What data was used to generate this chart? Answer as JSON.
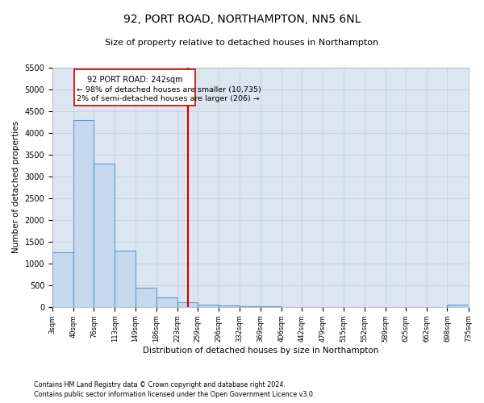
{
  "title": "92, PORT ROAD, NORTHAMPTON, NN5 6NL",
  "subtitle": "Size of property relative to detached houses in Northampton",
  "xlabel": "Distribution of detached houses by size in Northampton",
  "ylabel": "Number of detached properties",
  "footnote1": "Contains HM Land Registry data © Crown copyright and database right 2024.",
  "footnote2": "Contains public sector information licensed under the Open Government Licence v3.0.",
  "annotation_title": "92 PORT ROAD: 242sqm",
  "annotation_line1": "← 98% of detached houses are smaller (10,735)",
  "annotation_line2": "2% of semi-detached houses are larger (206) →",
  "property_line_x": 242,
  "bar_edges": [
    3,
    40,
    76,
    113,
    149,
    186,
    223,
    259,
    296,
    332,
    369,
    406,
    442,
    479,
    515,
    552,
    589,
    625,
    662,
    698,
    735
  ],
  "bar_heights": [
    1250,
    4300,
    3300,
    1300,
    450,
    220,
    100,
    50,
    30,
    20,
    10,
    5,
    5,
    5,
    0,
    0,
    0,
    0,
    0,
    50
  ],
  "bar_color": "#c5d8ed",
  "bar_edge_color": "#5b9bd5",
  "vline_color": "#cc0000",
  "grid_color": "#c8d4e3",
  "background_color": "#dce6f1",
  "ylim": [
    0,
    5500
  ],
  "yticks": [
    0,
    500,
    1000,
    1500,
    2000,
    2500,
    3000,
    3500,
    4000,
    4500,
    5000,
    5500
  ]
}
